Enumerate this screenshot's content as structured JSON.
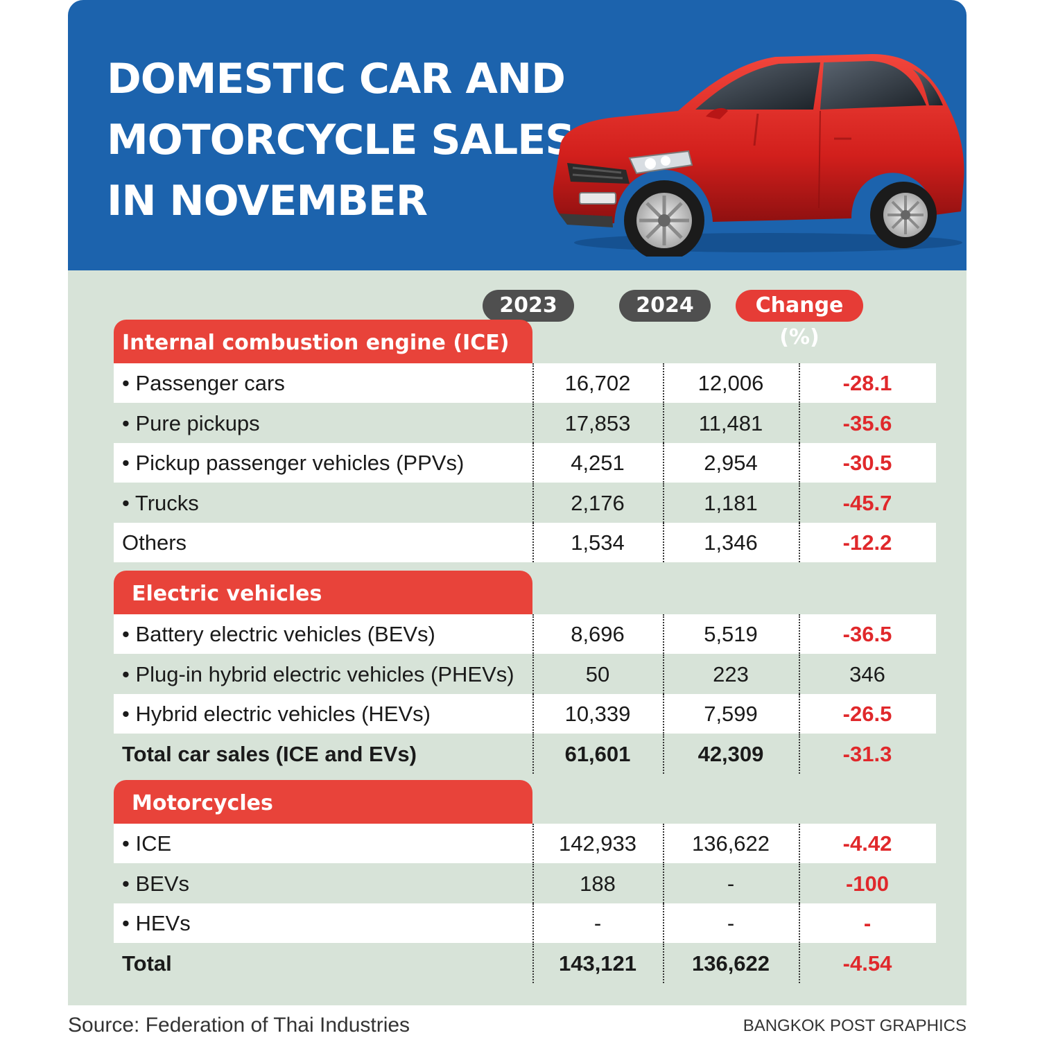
{
  "title_lines": [
    "DOMESTIC CAR AND",
    "MOTORCYCLE SALES",
    "IN NOVEMBER"
  ],
  "columns": [
    "2023",
    "2024",
    "Change (%)"
  ],
  "colors": {
    "header_bg": "#1c63ad",
    "table_bg": "#d7e3d8",
    "section_tab": "#e8433a",
    "negative": "#e0282b",
    "year_pill": "#4f4f4f"
  },
  "chart_data": {
    "type": "table",
    "title": "DOMESTIC CAR AND MOTORCYCLE SALES IN NOVEMBER",
    "columns": [
      "2023",
      "2024",
      "Change (%)"
    ],
    "sections": [
      {
        "name": "Internal combustion engine (ICE) cars",
        "rows": [
          {
            "label": "• Passenger cars",
            "v2023": "16,702",
            "v2024": "12,006",
            "change": "-28.1"
          },
          {
            "label": "• Pure pickups",
            "v2023": "17,853",
            "v2024": "11,481",
            "change": "-35.6"
          },
          {
            "label": "• Pickup passenger vehicles (PPVs)",
            "v2023": "4,251",
            "v2024": "2,954",
            "change": "-30.5"
          },
          {
            "label": "• Trucks",
            "v2023": "2,176",
            "v2024": "1,181",
            "change": "-45.7"
          },
          {
            "label": "Others",
            "v2023": "1,534",
            "v2024": "1,346",
            "change": "-12.2"
          }
        ]
      },
      {
        "name": "Electric vehicles",
        "rows": [
          {
            "label": "• Battery electric vehicles (BEVs)",
            "v2023": "8,696",
            "v2024": "5,519",
            "change": "-36.5"
          },
          {
            "label": "• Plug-in hybrid electric vehicles (PHEVs)",
            "v2023": "50",
            "v2024": "223",
            "change": "346"
          },
          {
            "label": "• Hybrid electric vehicles (HEVs)",
            "v2023": "10,339",
            "v2024": "7,599",
            "change": "-26.5"
          },
          {
            "label": "Total car sales (ICE and EVs)",
            "v2023": "61,601",
            "v2024": "42,309",
            "change": "-31.3",
            "total": true
          }
        ]
      },
      {
        "name": "Motorcycles",
        "rows": [
          {
            "label": "• ICE",
            "v2023": "142,933",
            "v2024": "136,622",
            "change": "-4.42"
          },
          {
            "label": "• BEVs",
            "v2023": "188",
            "v2024": "-",
            "change": "-100"
          },
          {
            "label": "• HEVs",
            "v2023": "-",
            "v2024": "-",
            "change": "-"
          },
          {
            "label": "Total",
            "v2023": "143,121",
            "v2024": "136,622",
            "change": "-4.54",
            "total": true
          }
        ]
      }
    ]
  },
  "footer": {
    "source": "Source: Federation of Thai Industries",
    "credit": "BANGKOK POST GRAPHICS"
  }
}
